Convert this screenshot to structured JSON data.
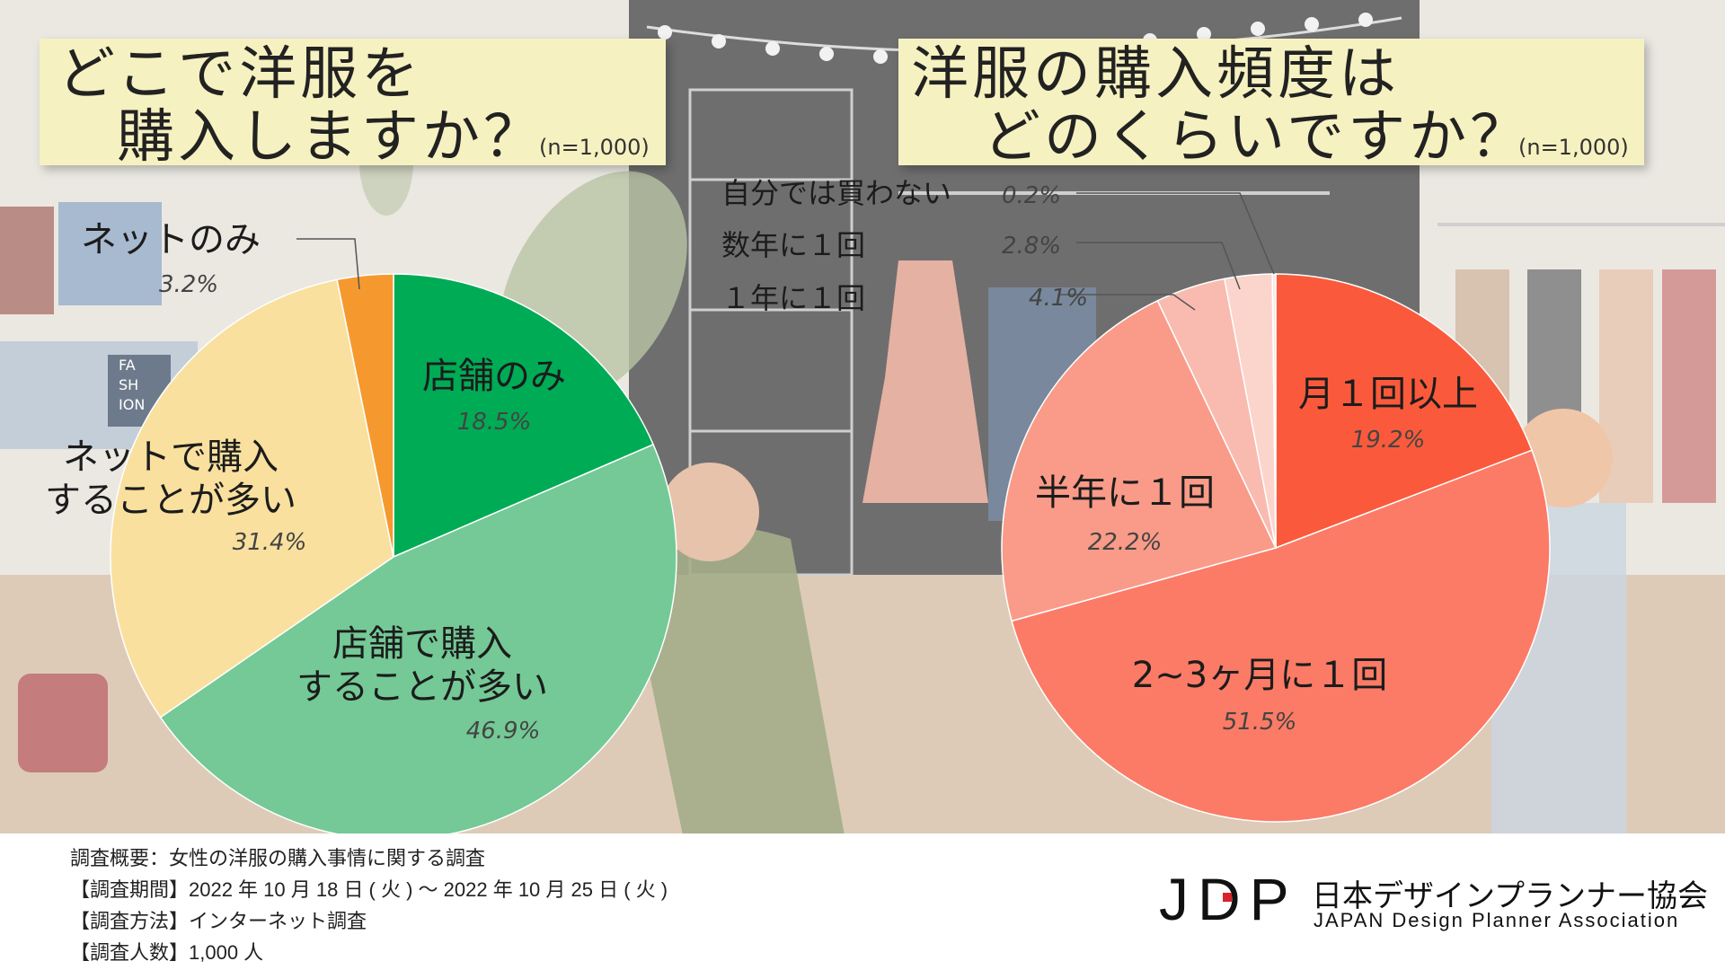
{
  "charts": [
    {
      "title_lines": [
        "どこで洋服を",
        "購入しますか？"
      ],
      "n_label": "(n=1,000)"
    },
    {
      "title_lines": [
        "洋服の購入頻度は",
        "どのくらいですか？"
      ],
      "n_label": "(n=1,000)"
    }
  ],
  "chart_data": [
    {
      "type": "pie",
      "title": "どこで洋服を購入しますか？",
      "unit": "%",
      "slices": [
        {
          "label": "店舗のみ",
          "value": 18.5,
          "value_label": "18.5%",
          "color": "#00ab55"
        },
        {
          "label": "店舗で購入することが多い",
          "label_lines": [
            "店舗で購入",
            "することが多い"
          ],
          "value": 46.9,
          "value_label": "46.9%",
          "color": "#74c996"
        },
        {
          "label": "ネットで購入することが多い",
          "label_lines": [
            "ネットで購入",
            "することが多い"
          ],
          "value": 31.4,
          "value_label": "31.4%",
          "color": "#f9e09e"
        },
        {
          "label": "ネットのみ",
          "value": 3.2,
          "value_label": "3.2%",
          "color": "#f5992e"
        }
      ]
    },
    {
      "type": "pie",
      "title": "洋服の購入頻度はどのくらいですか？",
      "unit": "%",
      "slices": [
        {
          "label": "月１回以上",
          "value": 19.2,
          "value_label": "19.2%",
          "color": "#fa5a3b"
        },
        {
          "label": "2~3ヶ月に１回",
          "value": 51.5,
          "value_label": "51.5%",
          "color": "#fc7b66"
        },
        {
          "label": "半年に１回",
          "value": 22.2,
          "value_label": "22.2%",
          "color": "#f99b88"
        },
        {
          "label": "１年に１回",
          "value": 4.1,
          "value_label": "4.1%",
          "color": "#f9bbb0"
        },
        {
          "label": "数年に１回",
          "value": 2.8,
          "value_label": "2.8%",
          "color": "#fbd4cc"
        },
        {
          "label": "自分では買わない",
          "value": 0.2,
          "value_label": "0.2%",
          "color": "#fde8e3"
        }
      ]
    }
  ],
  "footer": {
    "lines": [
      "調査概要：女性の洋服の購入事情に関する調査",
      "【調査期間】2022 年 10 月 18 日 ( 火 ) ～ 2022 年 10 月 25 日 ( 火 )",
      "【調査方法】インターネット調査",
      "【調査人数】1,000 人"
    ]
  },
  "logo": {
    "mark": "JDP",
    "name_jp": "日本デザインプランナー協会",
    "name_en": "JAPAN Design Planner Association",
    "accent_color": "#d8232a"
  },
  "background": {
    "sign_text": [
      "FA",
      "SH",
      "ION"
    ]
  }
}
